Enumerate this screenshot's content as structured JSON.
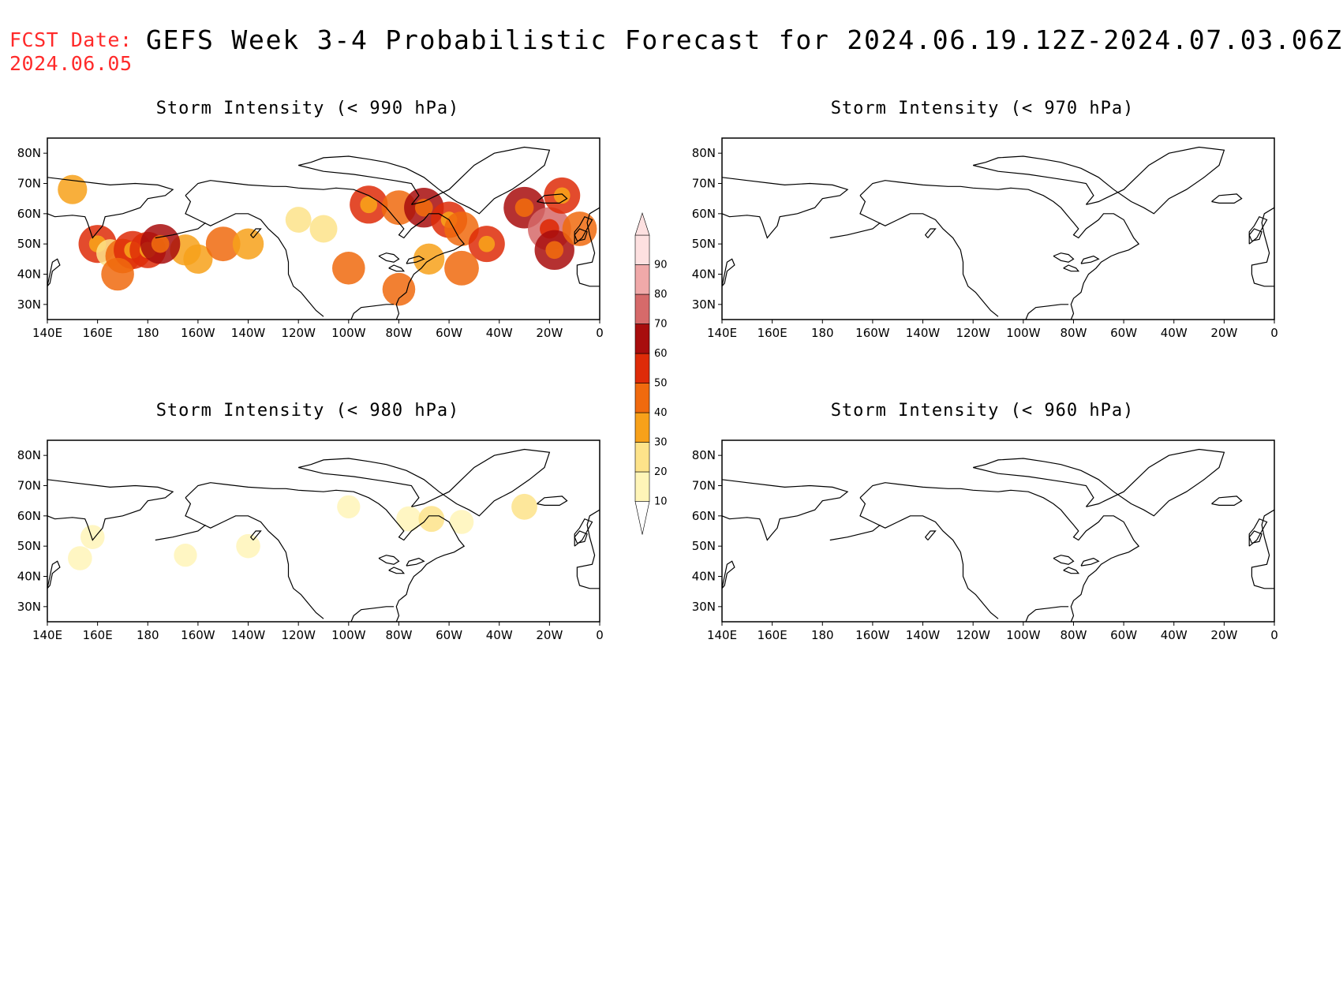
{
  "header": {
    "fcst_label": "FCST Date:",
    "fcst_date": "2024.06.05",
    "title": "GEFS Week 3-4 Probabilistic Forecast for 2024.06.19.12Z-2024.07.03.06Z"
  },
  "panels": [
    {
      "id": "p990",
      "title": "Storm Intensity (< 990 hPa)"
    },
    {
      "id": "p970",
      "title": "Storm Intensity (< 970 hPa)"
    },
    {
      "id": "p980",
      "title": "Storm Intensity (< 980 hPa)"
    },
    {
      "id": "p960",
      "title": "Storm Intensity (< 960 hPa)"
    }
  ],
  "axes": {
    "lat_ticks": [
      "80N",
      "70N",
      "60N",
      "50N",
      "40N",
      "30N"
    ],
    "lon_ticks": [
      "140E",
      "160E",
      "180",
      "160W",
      "140W",
      "120W",
      "100W",
      "80W",
      "60W",
      "40W",
      "20W",
      "0"
    ]
  },
  "colorbar": {
    "levels": [
      "10",
      "20",
      "30",
      "40",
      "50",
      "60",
      "70",
      "80",
      "90"
    ],
    "colors": [
      "#fff5b8",
      "#fde38a",
      "#f7a11a",
      "#f06a0e",
      "#de2b08",
      "#a80d0d",
      "#d66a6a",
      "#f0a9a9",
      "#fde0e0"
    ]
  },
  "map_data": {
    "region": {
      "lon_min": 140,
      "lon_max": 360,
      "lat_min": 25,
      "lat_max": 85
    },
    "probability_units": "%",
    "p990": [
      {
        "lon": 195,
        "lat": 48,
        "p": 35
      },
      {
        "lon": 160,
        "lat": 50,
        "p": 55
      },
      {
        "lon": 165,
        "lat": 47,
        "p": 25
      },
      {
        "lon": 170,
        "lat": 46,
        "p": 45
      },
      {
        "lon": 174,
        "lat": 48,
        "p": 55
      },
      {
        "lon": 180,
        "lat": 48,
        "p": 50
      },
      {
        "lon": 185,
        "lat": 50,
        "p": 60
      },
      {
        "lon": 200,
        "lat": 45,
        "p": 30
      },
      {
        "lon": 210,
        "lat": 50,
        "p": 45
      },
      {
        "lon": 220,
        "lat": 50,
        "p": 35
      },
      {
        "lon": 168,
        "lat": 40,
        "p": 40
      },
      {
        "lon": 150,
        "lat": 68,
        "p": 30
      },
      {
        "lon": 250,
        "lat": 55,
        "p": 25
      },
      {
        "lon": 268,
        "lat": 63,
        "p": 55
      },
      {
        "lon": 280,
        "lat": 62,
        "p": 45
      },
      {
        "lon": 290,
        "lat": 62,
        "p": 60
      },
      {
        "lon": 300,
        "lat": 58,
        "p": 50
      },
      {
        "lon": 305,
        "lat": 55,
        "p": 45
      },
      {
        "lon": 315,
        "lat": 50,
        "p": 50
      },
      {
        "lon": 330,
        "lat": 62,
        "p": 65
      },
      {
        "lon": 340,
        "lat": 55,
        "p": 70
      },
      {
        "lon": 342,
        "lat": 48,
        "p": 60
      },
      {
        "lon": 345,
        "lat": 66,
        "p": 50
      },
      {
        "lon": 352,
        "lat": 55,
        "p": 45
      },
      {
        "lon": 305,
        "lat": 42,
        "p": 45
      },
      {
        "lon": 280,
        "lat": 35,
        "p": 40
      },
      {
        "lon": 260,
        "lat": 42,
        "p": 40
      },
      {
        "lon": 240,
        "lat": 58,
        "p": 20
      },
      {
        "lon": 292,
        "lat": 45,
        "p": 35
      }
    ],
    "p980": [
      {
        "lon": 153,
        "lat": 46,
        "p": 15
      },
      {
        "lon": 158,
        "lat": 53,
        "p": 15
      },
      {
        "lon": 195,
        "lat": 47,
        "p": 12
      },
      {
        "lon": 220,
        "lat": 50,
        "p": 15
      },
      {
        "lon": 260,
        "lat": 63,
        "p": 12
      },
      {
        "lon": 284,
        "lat": 59,
        "p": 18
      },
      {
        "lon": 293,
        "lat": 59,
        "p": 20
      },
      {
        "lon": 305,
        "lat": 58,
        "p": 15
      },
      {
        "lon": 330,
        "lat": 63,
        "p": 20
      }
    ],
    "p970": [],
    "p960": []
  }
}
